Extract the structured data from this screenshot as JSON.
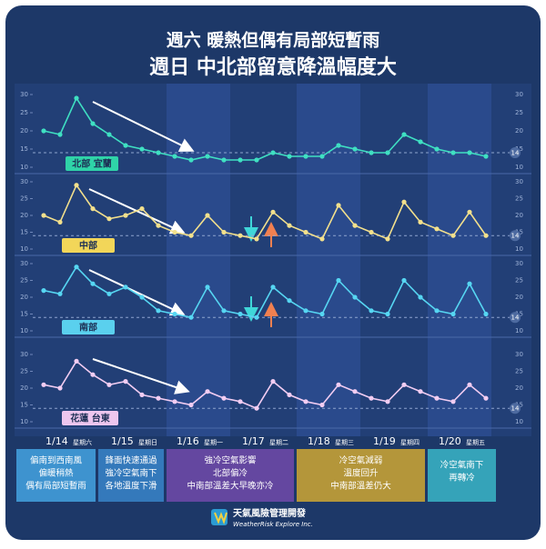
{
  "header": {
    "line1": "週六 暖熱但偶有局部短暫雨",
    "line2": "週日 中北部留意降溫幅度大"
  },
  "chart_data": [
    {
      "type": "line",
      "label": "北部 宜蘭",
      "color": "#3fe0c2",
      "label_color": "#2fd3a8",
      "values": [
        20,
        19,
        29,
        22,
        19,
        16,
        15,
        14,
        13,
        12,
        13,
        12,
        12,
        12,
        14,
        13,
        13,
        13,
        16,
        15,
        14,
        14,
        19,
        17,
        15,
        14,
        14,
        13
      ],
      "ylim": [
        10,
        30
      ],
      "yticks": [
        10,
        15,
        20,
        25,
        30
      ],
      "reference": 14
    },
    {
      "type": "line",
      "label": "中部",
      "color": "#f3e08c",
      "label_color": "#f2d659",
      "values": [
        20,
        18,
        29,
        22,
        19,
        20,
        22,
        17,
        15,
        14,
        20,
        15,
        14,
        13,
        21,
        17,
        15,
        13,
        23,
        17,
        15,
        13,
        24,
        18,
        16,
        14,
        21,
        14
      ],
      "ylim": [
        10,
        30
      ],
      "yticks": [
        10,
        15,
        20,
        25,
        30
      ],
      "reference": 14
    },
    {
      "type": "line",
      "label": "南部",
      "color": "#56d6f2",
      "label_color": "#5ad0ee",
      "values": [
        22,
        21,
        29,
        24,
        21,
        23,
        20,
        16,
        15,
        14,
        23,
        16,
        15,
        14,
        23,
        19,
        16,
        15,
        25,
        20,
        16,
        15,
        25,
        20,
        16,
        15,
        24,
        15
      ],
      "ylim": [
        10,
        30
      ],
      "yticks": [
        10,
        15,
        20,
        25,
        30
      ],
      "reference": 14
    },
    {
      "type": "line",
      "label": "花蓮 台東",
      "color": "#f2cdf2",
      "label_color": "#edc6ee",
      "values": [
        21,
        20,
        28,
        24,
        21,
        22,
        18,
        17,
        16,
        15,
        19,
        17,
        16,
        14,
        22,
        18,
        16,
        15,
        21,
        19,
        17,
        16,
        21,
        19,
        17,
        16,
        21,
        17
      ],
      "ylim": [
        10,
        30
      ],
      "yticks": [
        10,
        15,
        20,
        25,
        30
      ],
      "reference": 14
    }
  ],
  "days": [
    {
      "date": "1/14",
      "weekday": "星期六"
    },
    {
      "date": "1/15",
      "weekday": "星期日"
    },
    {
      "date": "1/16",
      "weekday": "星期一"
    },
    {
      "date": "1/17",
      "weekday": "星期二"
    },
    {
      "date": "1/18",
      "weekday": "星期三"
    },
    {
      "date": "1/19",
      "weekday": "星期四"
    },
    {
      "date": "1/20",
      "weekday": "星期五"
    }
  ],
  "notes": [
    {
      "lines": [
        "偏南到西南風",
        "偏暖稍熱",
        "偶有局部短暫雨"
      ],
      "color": "#3e93cf"
    },
    {
      "lines": [
        "鋒面快速通過",
        "強冷空氣南下",
        "各地溫度下滑"
      ],
      "color": "#3479bb"
    },
    {
      "lines": [
        "強冷空氣影響",
        "北部偏冷",
        "中南部溫差大早晚亦冷"
      ],
      "color": "#6447a0"
    },
    {
      "lines": [
        "冷空氣減弱",
        "溫度回升",
        "中南部溫差仍大"
      ],
      "color": "#b4963a"
    },
    {
      "lines": [
        "冷空氣南下",
        "再轉冷"
      ],
      "color": "#35a3b9"
    }
  ],
  "footer": {
    "name": "天氣風險管理開發",
    "english": "WeatherRisk Explore Inc."
  }
}
